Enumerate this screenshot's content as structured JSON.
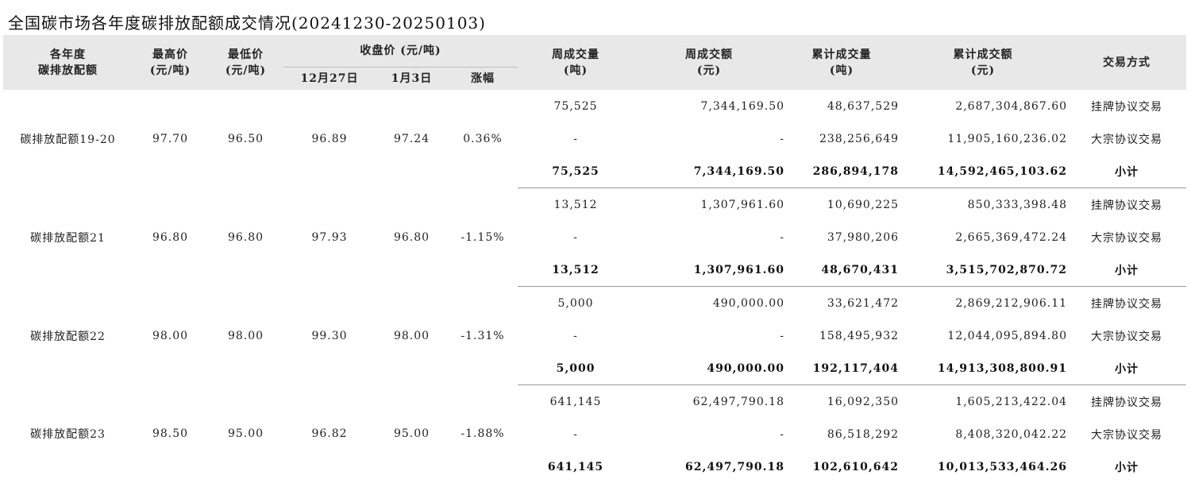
{
  "title": "全国碳市场各年度碳排放配额成交情况(20241230-20250103)",
  "header": {
    "col_allowance_l1": "各年度",
    "col_allowance_l2": "碳排放配额",
    "col_high_l1": "最高价",
    "col_high_l2": "(元/吨)",
    "col_low_l1": "最低价",
    "col_low_l2": "(元/吨)",
    "col_close": "收盘价 (元/吨)",
    "col_close_prev": "12月27日",
    "col_close_curr": "1月3日",
    "col_change": "涨幅",
    "col_week_vol_l1": "周成交量",
    "col_week_vol_l2": "(吨)",
    "col_week_amt_l1": "周成交额",
    "col_week_amt_l2": "(元)",
    "col_cum_vol_l1": "累计成交量",
    "col_cum_vol_l2": "(吨)",
    "col_cum_amt_l1": "累计成交额",
    "col_cum_amt_l2": "(元)",
    "col_method": "交易方式"
  },
  "groups": [
    {
      "name": "碳排放配额19-20",
      "high": "97.70",
      "low": "96.50",
      "close_prev": "96.89",
      "close_curr": "97.24",
      "change": "0.36%",
      "rows": [
        {
          "week_vol": "75,525",
          "week_amt": "7,344,169.50",
          "cum_vol": "48,637,529",
          "cum_amt": "2,687,304,867.60",
          "method": "挂牌协议交易"
        },
        {
          "week_vol": "-",
          "week_amt": "-",
          "cum_vol": "238,256,649",
          "cum_amt": "11,905,160,236.02",
          "method": "大宗协议交易"
        },
        {
          "week_vol": "75,525",
          "week_amt": "7,344,169.50",
          "cum_vol": "286,894,178",
          "cum_amt": "14,592,465,103.62",
          "method": "小计"
        }
      ]
    },
    {
      "name": "碳排放配额21",
      "high": "96.80",
      "low": "96.80",
      "close_prev": "97.93",
      "close_curr": "96.80",
      "change": "-1.15%",
      "rows": [
        {
          "week_vol": "13,512",
          "week_amt": "1,307,961.60",
          "cum_vol": "10,690,225",
          "cum_amt": "850,333,398.48",
          "method": "挂牌协议交易"
        },
        {
          "week_vol": "-",
          "week_amt": "-",
          "cum_vol": "37,980,206",
          "cum_amt": "2,665,369,472.24",
          "method": "大宗协议交易"
        },
        {
          "week_vol": "13,512",
          "week_amt": "1,307,961.60",
          "cum_vol": "48,670,431",
          "cum_amt": "3,515,702,870.72",
          "method": "小计"
        }
      ]
    },
    {
      "name": "碳排放配额22",
      "high": "98.00",
      "low": "98.00",
      "close_prev": "99.30",
      "close_curr": "98.00",
      "change": "-1.31%",
      "rows": [
        {
          "week_vol": "5,000",
          "week_amt": "490,000.00",
          "cum_vol": "33,621,472",
          "cum_amt": "2,869,212,906.11",
          "method": "挂牌协议交易"
        },
        {
          "week_vol": "-",
          "week_amt": "-",
          "cum_vol": "158,495,932",
          "cum_amt": "12,044,095,894.80",
          "method": "大宗协议交易"
        },
        {
          "week_vol": "5,000",
          "week_amt": "490,000.00",
          "cum_vol": "192,117,404",
          "cum_amt": "14,913,308,800.91",
          "method": "小计"
        }
      ]
    },
    {
      "name": "碳排放配额23",
      "high": "98.50",
      "low": "95.00",
      "close_prev": "96.82",
      "close_curr": "95.00",
      "change": "-1.88%",
      "rows": [
        {
          "week_vol": "641,145",
          "week_amt": "62,497,790.18",
          "cum_vol": "16,092,350",
          "cum_amt": "1,605,213,422.04",
          "method": "挂牌协议交易"
        },
        {
          "week_vol": "-",
          "week_amt": "-",
          "cum_vol": "86,518,292",
          "cum_amt": "8,408,320,042.22",
          "method": "大宗协议交易"
        },
        {
          "week_vol": "641,145",
          "week_amt": "62,497,790.18",
          "cum_vol": "102,610,642",
          "cum_amt": "10,013,533,464.26",
          "method": "小计"
        }
      ]
    }
  ]
}
